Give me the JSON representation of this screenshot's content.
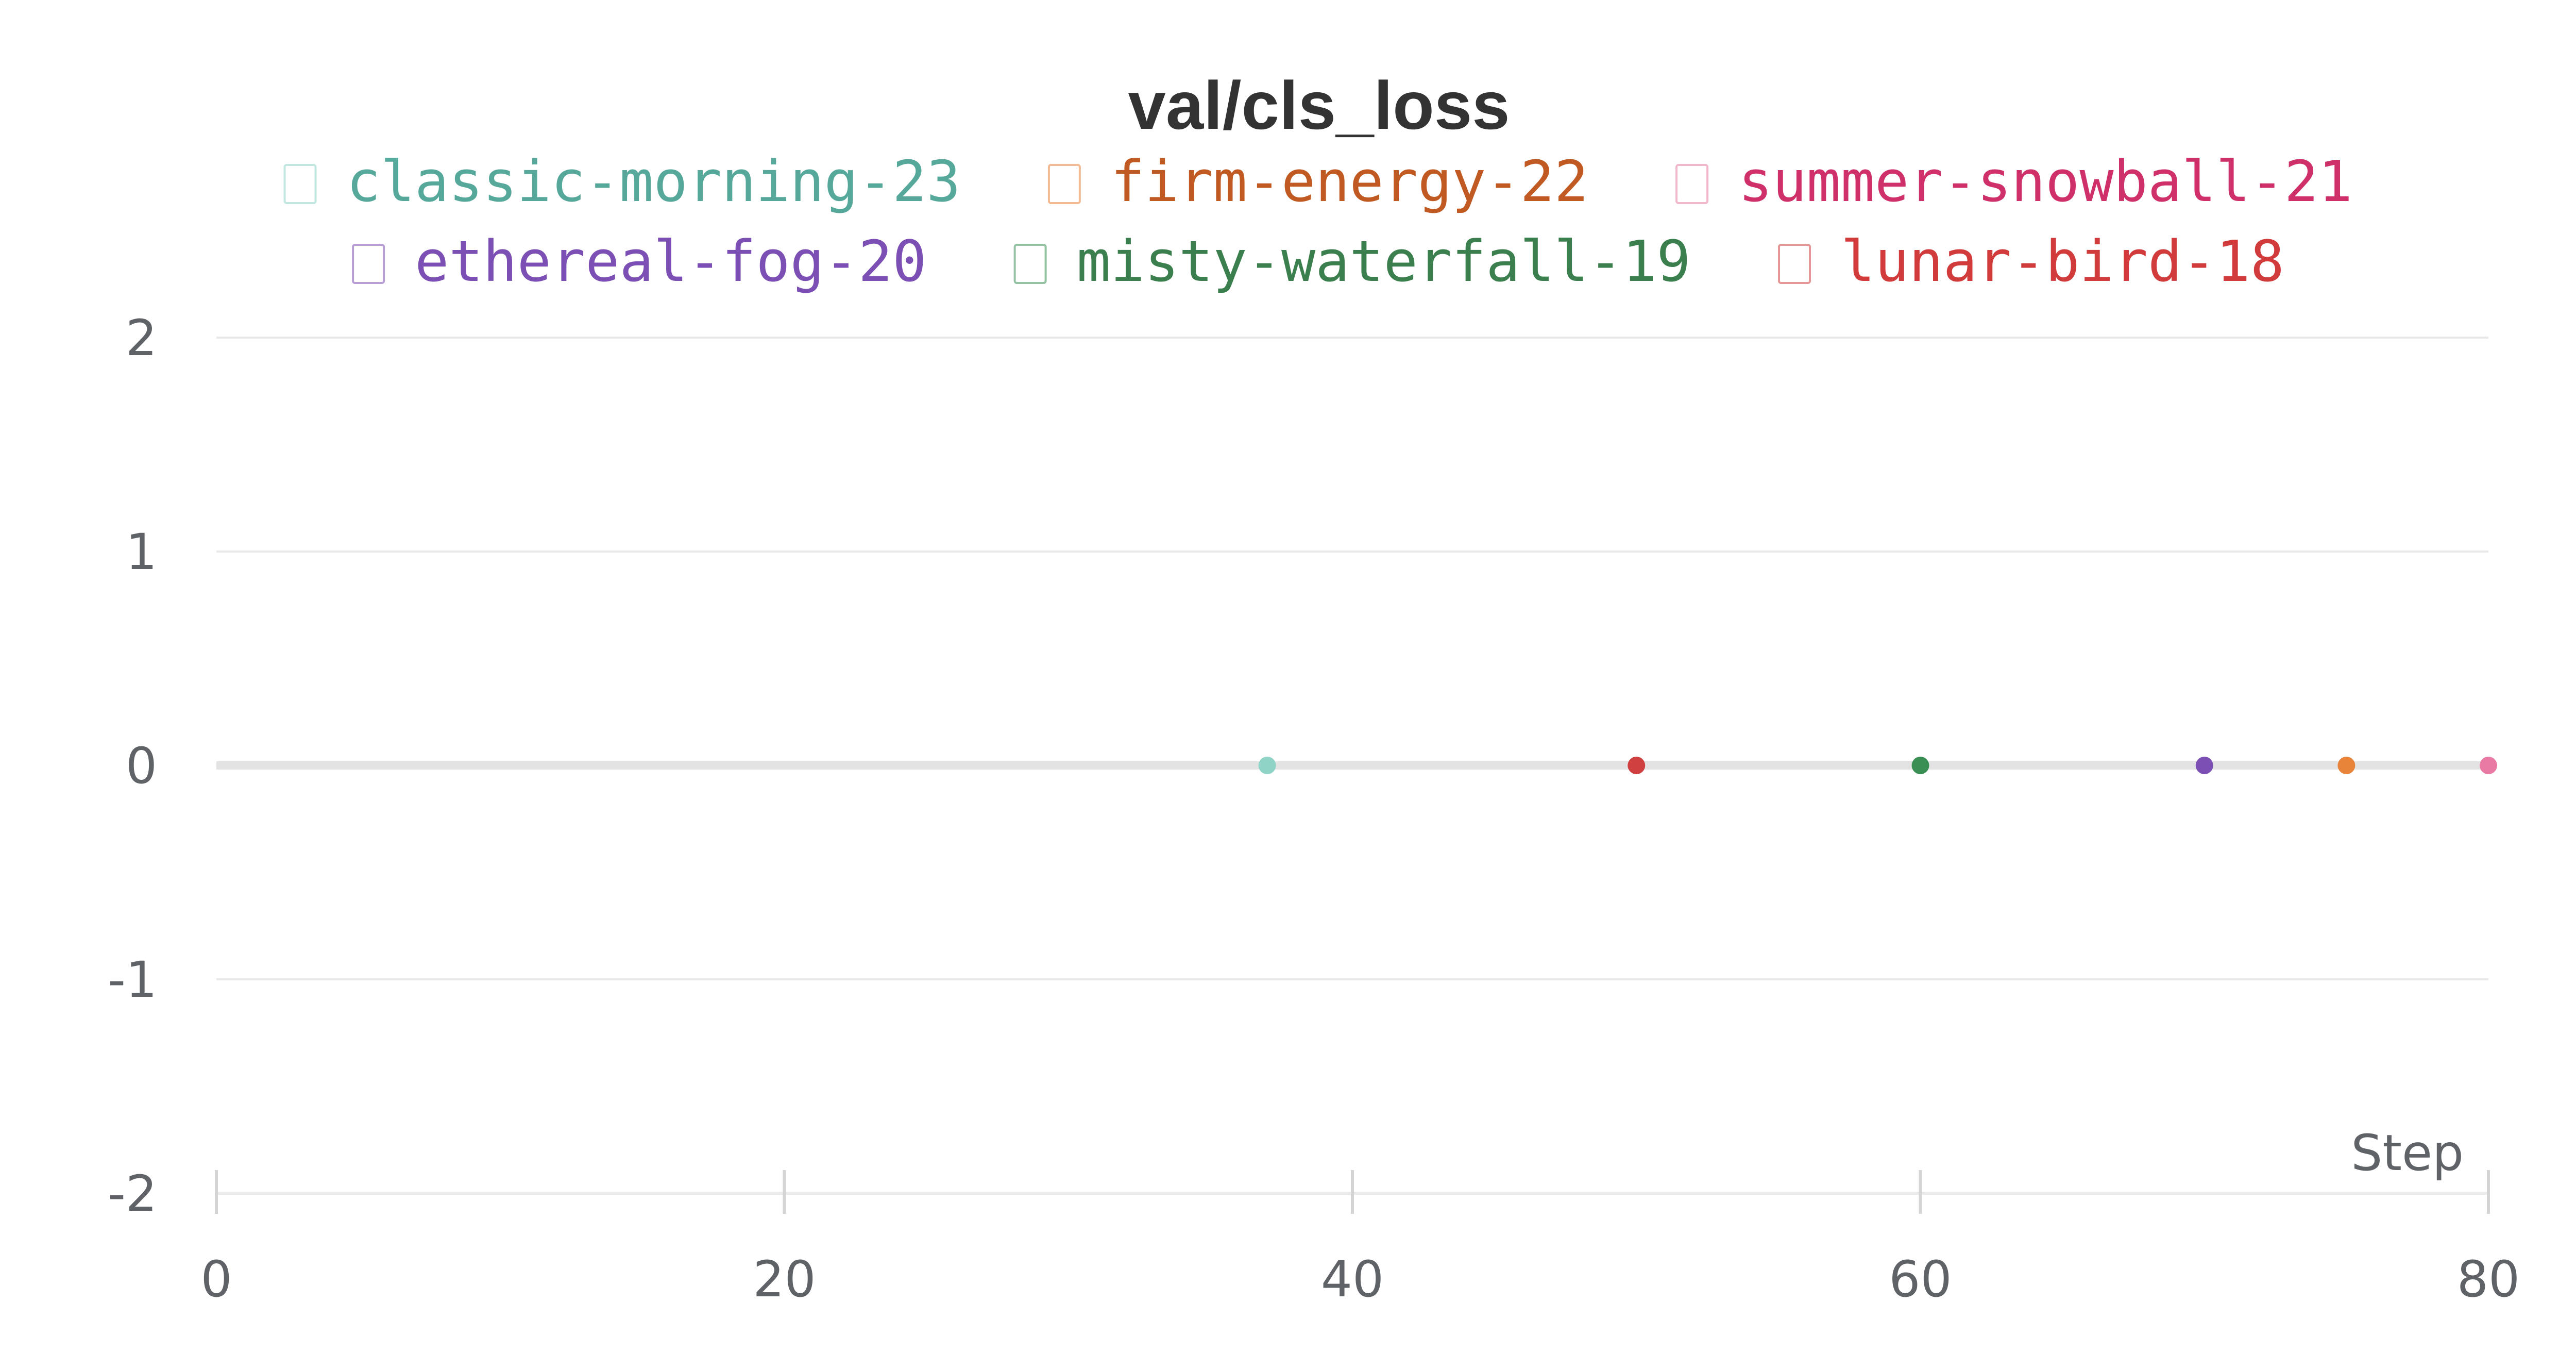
{
  "chart_data": {
    "type": "scatter",
    "title": "val/cls_loss",
    "xlabel": "Step",
    "ylabel": "",
    "xlim": [
      0,
      80
    ],
    "ylim": [
      -2,
      2
    ],
    "x_ticks": [
      "0",
      "20",
      "40",
      "60",
      "80"
    ],
    "y_ticks": [
      "2",
      "1",
      "0",
      "-1",
      "-2"
    ],
    "grid": true,
    "legend_position": "top-center",
    "series": [
      {
        "name": "classic-morning-23",
        "color": "#55a89a",
        "marker_color": "#8fd2c6",
        "x": [
          37
        ],
        "y": [
          0
        ]
      },
      {
        "name": "firm-energy-22",
        "color": "#c05a22",
        "marker_color": "#e8833a",
        "x": [
          75
        ],
        "y": [
          0
        ]
      },
      {
        "name": "summer-snowball-21",
        "color": "#d0306a",
        "marker_color": "#e87aa4",
        "x": [
          80
        ],
        "y": [
          0
        ]
      },
      {
        "name": "ethereal-fog-20",
        "color": "#7b4fb3",
        "marker_color": "#7b4fb3",
        "x": [
          70
        ],
        "y": [
          0
        ]
      },
      {
        "name": "misty-waterfall-19",
        "color": "#3a7f4d",
        "marker_color": "#3a8f55",
        "x": [
          60
        ],
        "y": [
          0
        ]
      },
      {
        "name": "lunar-bird-18",
        "color": "#d13b3b",
        "marker_color": "#d04040",
        "x": [
          50
        ],
        "y": [
          0
        ]
      }
    ]
  }
}
